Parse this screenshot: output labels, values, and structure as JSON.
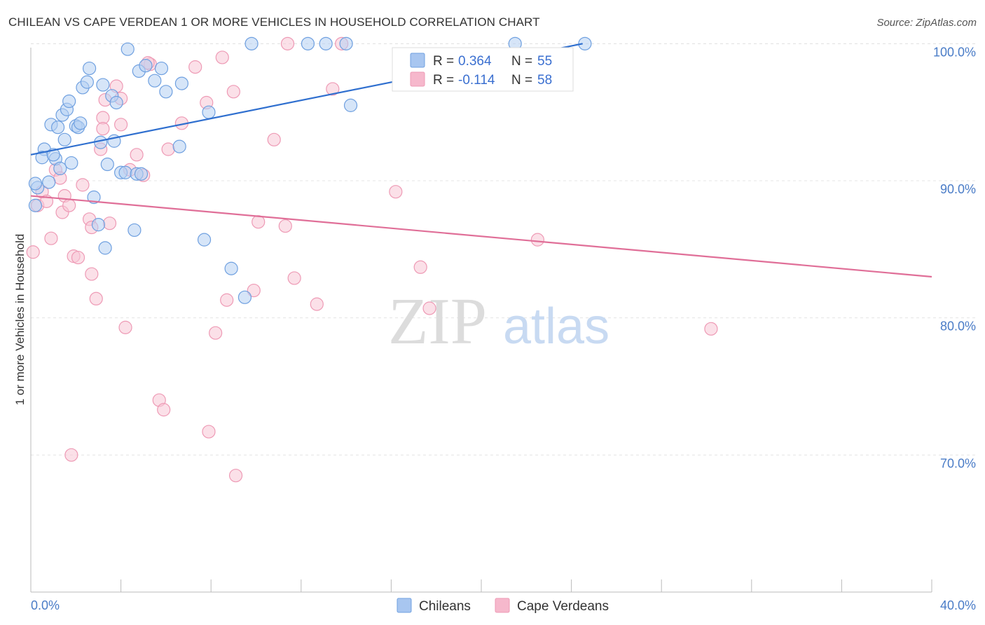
{
  "title": "CHILEAN VS CAPE VERDEAN 1 OR MORE VEHICLES IN HOUSEHOLD CORRELATION CHART",
  "source": "Source: ZipAtlas.com",
  "watermark": {
    "zip": "ZIP",
    "atlas": "atlas"
  },
  "legend_top": {
    "rows": [
      {
        "r_label": "R = ",
        "r_value": "0.364",
        "n_label": "N = ",
        "n_value": "55",
        "color": "#a8c6f0"
      },
      {
        "r_label": "R = ",
        "r_value": "-0.114",
        "n_label": "N = ",
        "n_value": "58",
        "color": "#f6b8cc"
      }
    ]
  },
  "legend_bottom": [
    "Chileans",
    "Cape Verdeans"
  ],
  "chart_data": {
    "type": "scatter",
    "xlabel": "",
    "ylabel": "1 or more Vehicles in Household",
    "xlim": [
      0,
      40
    ],
    "ylim": [
      60,
      101.5
    ],
    "x_tick_labels": [
      "0.0%",
      "40.0%"
    ],
    "y_ticks": [
      70,
      80,
      90,
      100
    ],
    "y_tick_labels": [
      "70.0%",
      "80.0%",
      "90.0%",
      "100.0%"
    ],
    "grid": true,
    "colors": {
      "chileans": "#6fa0e0",
      "chileans_fill": "#b5cff2",
      "chileans_line": "#2f6fcf",
      "cape": "#ee9ab5",
      "cape_fill": "#f8c6d6",
      "cape_line": "#e06f98"
    },
    "series": [
      {
        "name": "Chileans",
        "points": [
          [
            0.3,
            89.5
          ],
          [
            0.6,
            92.3
          ],
          [
            0.9,
            94.1
          ],
          [
            0.5,
            91.7
          ],
          [
            0.8,
            89.9
          ],
          [
            1.1,
            91.6
          ],
          [
            1.2,
            93.9
          ],
          [
            1.4,
            94.8
          ],
          [
            1.6,
            95.2
          ],
          [
            1.7,
            95.8
          ],
          [
            1.8,
            91.3
          ],
          [
            2.0,
            94.0
          ],
          [
            2.1,
            93.9
          ],
          [
            2.3,
            96.8
          ],
          [
            2.5,
            97.2
          ],
          [
            2.6,
            98.2
          ],
          [
            2.8,
            88.8
          ],
          [
            3.0,
            86.8
          ],
          [
            3.1,
            92.8
          ],
          [
            3.2,
            97.0
          ],
          [
            3.3,
            85.1
          ],
          [
            3.4,
            91.2
          ],
          [
            3.6,
            96.2
          ],
          [
            3.7,
            92.9
          ],
          [
            3.8,
            95.7
          ],
          [
            4.0,
            90.6
          ],
          [
            4.2,
            90.6
          ],
          [
            4.3,
            99.6
          ],
          [
            4.6,
            86.4
          ],
          [
            4.7,
            90.5
          ],
          [
            4.8,
            98.0
          ],
          [
            4.9,
            90.5
          ],
          [
            5.1,
            98.4
          ],
          [
            5.5,
            97.3
          ],
          [
            5.8,
            98.2
          ],
          [
            6.0,
            96.5
          ],
          [
            6.6,
            92.5
          ],
          [
            6.7,
            97.1
          ],
          [
            7.7,
            85.7
          ],
          [
            7.9,
            95.0
          ],
          [
            8.9,
            83.6
          ],
          [
            9.5,
            81.5
          ],
          [
            9.8,
            100.0
          ],
          [
            12.3,
            100.0
          ],
          [
            13.1,
            100.0
          ],
          [
            14.0,
            100.0
          ],
          [
            14.2,
            95.5
          ],
          [
            21.5,
            100.0
          ],
          [
            24.6,
            100.0
          ],
          [
            0.2,
            88.2
          ],
          [
            0.2,
            89.8
          ],
          [
            1.0,
            91.9
          ],
          [
            1.3,
            90.9
          ],
          [
            1.5,
            93.0
          ],
          [
            2.2,
            94.2
          ]
        ],
        "trend": [
          [
            0,
            91.9
          ],
          [
            24.5,
            100.0
          ]
        ]
      },
      {
        "name": "Cape Verdeans",
        "points": [
          [
            0.1,
            84.8
          ],
          [
            0.3,
            88.2
          ],
          [
            0.5,
            89.2
          ],
          [
            0.7,
            88.5
          ],
          [
            0.9,
            85.8
          ],
          [
            1.1,
            90.8
          ],
          [
            1.3,
            90.2
          ],
          [
            1.4,
            87.7
          ],
          [
            1.5,
            88.9
          ],
          [
            1.7,
            88.2
          ],
          [
            1.9,
            84.5
          ],
          [
            2.1,
            84.4
          ],
          [
            2.3,
            89.7
          ],
          [
            2.6,
            87.2
          ],
          [
            2.7,
            83.2
          ],
          [
            2.9,
            81.4
          ],
          [
            3.1,
            92.3
          ],
          [
            3.2,
            94.6
          ],
          [
            3.3,
            95.9
          ],
          [
            3.5,
            86.9
          ],
          [
            3.8,
            96.9
          ],
          [
            4.0,
            94.1
          ],
          [
            4.2,
            79.3
          ],
          [
            4.4,
            90.8
          ],
          [
            4.7,
            91.9
          ],
          [
            5.0,
            90.4
          ],
          [
            5.3,
            98.5
          ],
          [
            5.7,
            74.0
          ],
          [
            5.9,
            73.3
          ],
          [
            6.1,
            92.3
          ],
          [
            6.7,
            94.2
          ],
          [
            7.3,
            98.3
          ],
          [
            7.8,
            95.7
          ],
          [
            7.9,
            71.7
          ],
          [
            8.2,
            78.9
          ],
          [
            8.5,
            99.0
          ],
          [
            8.7,
            81.3
          ],
          [
            9.0,
            96.5
          ],
          [
            9.1,
            68.5
          ],
          [
            9.9,
            82.0
          ],
          [
            10.1,
            87.0
          ],
          [
            10.8,
            93.0
          ],
          [
            11.3,
            86.7
          ],
          [
            11.4,
            100.0
          ],
          [
            11.7,
            82.9
          ],
          [
            12.7,
            81.0
          ],
          [
            13.4,
            96.7
          ],
          [
            13.8,
            100.0
          ],
          [
            16.2,
            89.2
          ],
          [
            17.3,
            83.7
          ],
          [
            17.7,
            80.7
          ],
          [
            22.5,
            85.7
          ],
          [
            30.2,
            79.2
          ],
          [
            2.7,
            86.6
          ],
          [
            5.2,
            98.6
          ],
          [
            4.0,
            96.0
          ],
          [
            1.8,
            70.0
          ],
          [
            3.2,
            93.8
          ]
        ],
        "trend": [
          [
            0,
            88.9
          ],
          [
            40,
            83.0
          ]
        ]
      }
    ]
  }
}
